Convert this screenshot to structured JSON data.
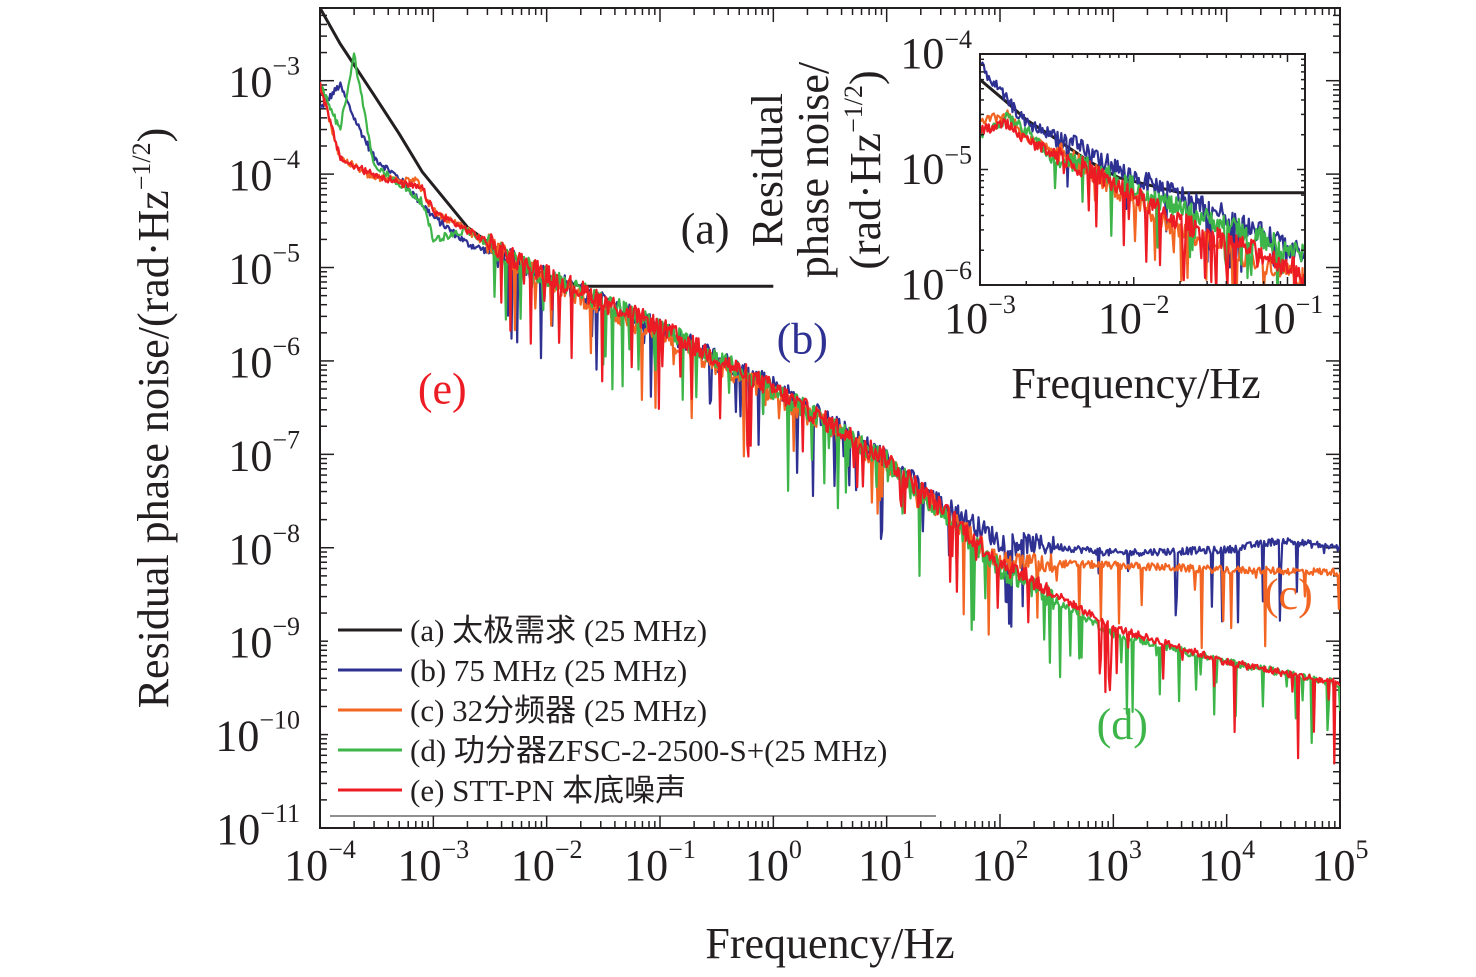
{
  "chart_data": [
    {
      "type": "line",
      "panel": "main",
      "x_scale": "log",
      "y_scale": "log",
      "xlim": [
        0.0001,
        100000
      ],
      "ylim": [
        1e-11,
        0.006
      ],
      "xlabel": "Frequency/Hz",
      "ylabel": "Residual phase noise/(rad·Hz",
      "ylabel_exponent": "−1/2",
      "ylabel_close": ")",
      "x_ticks": [
        {
          "value": 0.0001,
          "base": "10",
          "exp": "−4"
        },
        {
          "value": 0.001,
          "base": "10",
          "exp": "−3"
        },
        {
          "value": 0.01,
          "base": "10",
          "exp": "−2"
        },
        {
          "value": 0.1,
          "base": "10",
          "exp": "−1"
        },
        {
          "value": 1,
          "base": "10",
          "exp": "0"
        },
        {
          "value": 10,
          "base": "10",
          "exp": "1"
        },
        {
          "value": 100,
          "base": "10",
          "exp": "2"
        },
        {
          "value": 1000,
          "base": "10",
          "exp": "3"
        },
        {
          "value": 10000,
          "base": "10",
          "exp": "4"
        },
        {
          "value": 100000,
          "base": "10",
          "exp": "5"
        }
      ],
      "y_ticks": [
        {
          "value": 1e-11,
          "base": "10",
          "exp": "−11"
        },
        {
          "value": 1e-10,
          "base": "10",
          "exp": "−10"
        },
        {
          "value": 1e-09,
          "base": "10",
          "exp": "−9"
        },
        {
          "value": 1e-08,
          "base": "10",
          "exp": "−8"
        },
        {
          "value": 1e-07,
          "base": "10",
          "exp": "−7"
        },
        {
          "value": 1e-06,
          "base": "10",
          "exp": "−6"
        },
        {
          "value": 1e-05,
          "base": "10",
          "exp": "−5"
        },
        {
          "value": 0.0001,
          "base": "10",
          "exp": "−4"
        },
        {
          "value": 0.001,
          "base": "10",
          "exp": "−3"
        }
      ],
      "series": [
        {
          "key": "a",
          "name": "(a) 太极需求 (25 MHz)",
          "color": "#231f20",
          "x": [
            0.0001,
            0.00015,
            0.0003,
            0.0005,
            0.0008,
            0.002,
            0.005,
            0.01,
            0.02,
            1
          ],
          "y": [
            0.006,
            0.0025,
            0.0007,
            0.00027,
            0.000105,
            2.7e-05,
            1.2e-05,
            8.2e-06,
            6.3e-06,
            6.3e-06
          ]
        },
        {
          "key": "b",
          "name": "(b) 75 MHz (25 MHz)",
          "color": "#2e3192",
          "x": [
            0.0001,
            0.00015,
            0.0002,
            0.0003,
            0.0005,
            0.001,
            0.002,
            0.005,
            0.01,
            0.1,
            1,
            10,
            30,
            100,
            1000,
            10000,
            30000,
            100000
          ],
          "y": [
            0.0005,
            0.0009,
            0.0004,
            0.00015,
            9e-05,
            3.5e-05,
            1.8e-05,
            1.2e-05,
            8e-06,
            2.2e-06,
            5.5e-07,
            9e-08,
            3e-08,
            1.2e-08,
            8.8e-09,
            9.5e-09,
            1.2e-08,
            1e-08
          ]
        },
        {
          "key": "c",
          "name": "(c) 32分频器 (25 MHz)",
          "color": "#f26522",
          "x": [
            0.0001,
            0.00015,
            0.0003,
            0.0007,
            0.001,
            0.002,
            0.005,
            0.01,
            0.1,
            1,
            10,
            50,
            100,
            1000,
            10000,
            100000
          ],
          "y": [
            0.0009,
            0.00015,
            9e-05,
            9e-05,
            4e-05,
            2.5e-05,
            1.2e-05,
            7.5e-06,
            1.8e-06,
            4.5e-07,
            8e-08,
            1.5e-08,
            7e-09,
            6.5e-09,
            5.8e-09,
            5.5e-09
          ]
        },
        {
          "key": "d",
          "name": "(d) 功分器ZFSC-2-2500-S+(25 MHz)",
          "color": "#3db549",
          "x": [
            0.0001,
            0.00015,
            0.0002,
            0.0003,
            0.0005,
            0.0008,
            0.001,
            0.002,
            0.005,
            0.01,
            0.1,
            1,
            10,
            100,
            1000,
            10000,
            100000
          ],
          "y": [
            0.0009,
            0.0003,
            0.0019,
            0.00012,
            8e-05,
            5e-05,
            2e-05,
            2.5e-05,
            1.2e-05,
            8e-06,
            2.3e-06,
            5e-07,
            8.5e-08,
            6e-09,
            1.2e-09,
            6e-10,
            3.5e-10
          ]
        },
        {
          "key": "e",
          "name": "(e) STT-PN 本底噪声",
          "color": "#ed1c24",
          "x": [
            0.0001,
            0.00015,
            0.0002,
            0.0003,
            0.0005,
            0.0008,
            0.001,
            0.002,
            0.005,
            0.01,
            0.1,
            1,
            10,
            100,
            1000,
            10000,
            100000
          ],
          "y": [
            0.0009,
            0.00015,
            0.00012,
            0.0001,
            8e-05,
            7e-05,
            4e-05,
            2.5e-05,
            1.3e-05,
            8.5e-06,
            2.3e-06,
            5e-07,
            9e-08,
            7e-09,
            1.4e-09,
            6e-10,
            3.5e-10
          ]
        }
      ],
      "legend": {
        "position": "bottom-left"
      },
      "annotations": [
        {
          "key": "a",
          "text": "(a)",
          "color": "#231f20",
          "x": 0.25,
          "y": 1.8e-05
        },
        {
          "key": "b",
          "text": "(b)",
          "color": "#2e3192",
          "x": 1.8,
          "y": 1.2e-06
        },
        {
          "key": "e",
          "text": "(e)",
          "color": "#ed1c24",
          "x": 0.0012,
          "y": 3.5e-07
        },
        {
          "key": "c",
          "text": "(c)",
          "color": "#f26522",
          "x": 35000,
          "y": 2.2e-09
        },
        {
          "key": "d",
          "text": "(d)",
          "color": "#3db549",
          "x": 1200,
          "y": 9e-11
        }
      ],
      "grid": false
    },
    {
      "type": "line",
      "panel": "inset",
      "x_scale": "log",
      "y_scale": "log",
      "xlim": [
        0.001,
        0.13
      ],
      "ylim": [
        1e-06,
        0.0001
      ],
      "xlabel": "Frequency/Hz",
      "ylabel_lines": [
        "Residual",
        "phase noise/",
        "(rad·Hz"
      ],
      "ylabel_exponent": "−1/2",
      "ylabel_close": ")",
      "x_ticks": [
        {
          "value": 0.001,
          "base": "10",
          "exp": "−3"
        },
        {
          "value": 0.01,
          "base": "10",
          "exp": "−2"
        },
        {
          "value": 0.1,
          "base": "10",
          "exp": "−1"
        }
      ],
      "y_ticks": [
        {
          "value": 1e-06,
          "base": "10",
          "exp": "−6"
        },
        {
          "value": 1e-05,
          "base": "10",
          "exp": "−5"
        },
        {
          "value": 0.0001,
          "base": "10",
          "exp": "−4"
        }
      ],
      "series": [
        {
          "key": "a",
          "color": "#231f20",
          "x": [
            0.001,
            0.0015,
            0.002,
            0.003,
            0.005,
            0.008,
            0.02,
            0.13
          ],
          "y": [
            6e-05,
            3.8e-05,
            2.7e-05,
            1.9e-05,
            1.2e-05,
            8.5e-06,
            6.3e-06,
            6.3e-06
          ]
        },
        {
          "key": "b",
          "color": "#2e3192",
          "x": [
            0.001,
            0.0015,
            0.002,
            0.003,
            0.005,
            0.01,
            0.02,
            0.05,
            0.13
          ],
          "y": [
            8e-05,
            4e-05,
            2.5e-05,
            2e-05,
            1.4e-05,
            8.5e-06,
            6e-06,
            3.5e-06,
            1.8e-06
          ]
        },
        {
          "key": "c",
          "color": "#f26522",
          "x": [
            0.001,
            0.0015,
            0.002,
            0.003,
            0.005,
            0.01,
            0.02,
            0.05,
            0.13
          ],
          "y": [
            2.5e-05,
            3e-05,
            1.8e-05,
            1.5e-05,
            1e-05,
            5.5e-06,
            3e-06,
            1.8e-06,
            1.2e-06
          ]
        },
        {
          "key": "d",
          "color": "#3db549",
          "x": [
            0.001,
            0.0015,
            0.002,
            0.003,
            0.005,
            0.01,
            0.02,
            0.05,
            0.13
          ],
          "y": [
            2e-05,
            2.8e-05,
            2.2e-05,
            1.2e-05,
            1.1e-05,
            7e-06,
            4.5e-06,
            3e-06,
            1.8e-06
          ]
        },
        {
          "key": "e",
          "color": "#ed1c24",
          "x": [
            0.001,
            0.0015,
            0.002,
            0.003,
            0.005,
            0.01,
            0.02,
            0.05,
            0.13
          ],
          "y": [
            2.2e-05,
            2.5e-05,
            1.8e-05,
            1.4e-05,
            1e-05,
            6e-06,
            3.5e-06,
            2.2e-06,
            1.3e-06
          ]
        }
      ],
      "grid": false
    }
  ]
}
